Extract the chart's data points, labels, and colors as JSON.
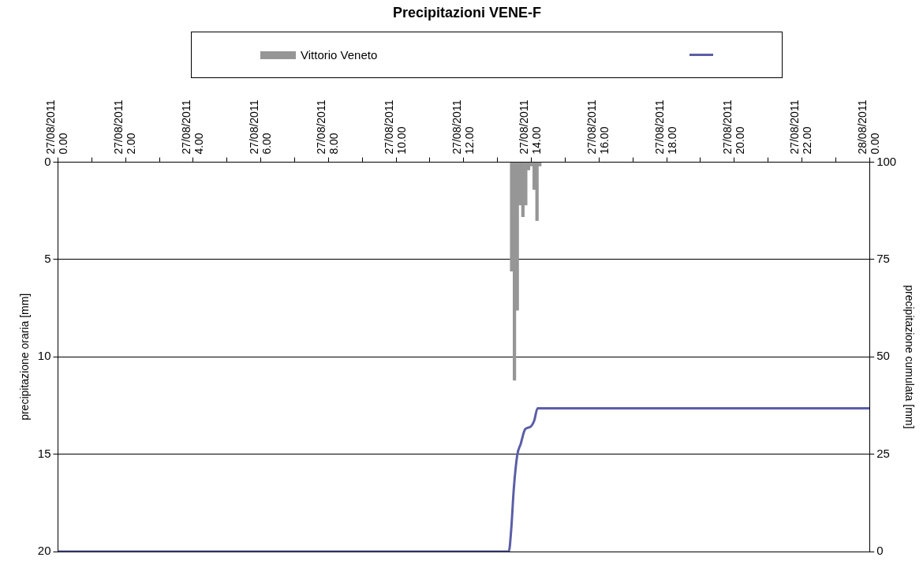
{
  "chart_data": {
    "type": "bar",
    "title": "Precipitazioni VENE-F",
    "ylabel": "precipitazione oraria [mm]",
    "y2label": "precipitazione cumulata [mm]",
    "x": [
      "2011-08-27T13:25",
      "2011-08-27T13:30",
      "2011-08-27T13:35",
      "2011-08-27T13:40",
      "2011-08-27T13:45",
      "2011-08-27T13:50",
      "2011-08-27T13:55",
      "2011-08-27T14:00",
      "2011-08-27T14:05",
      "2011-08-27T14:10",
      "2011-08-27T14:15"
    ],
    "series": [
      {
        "name": "Vittorio Veneto",
        "color": "#969696",
        "values": [
          5.6,
          11.2,
          7.6,
          2.2,
          2.8,
          2.2,
          0.4,
          0.2,
          1.4,
          3.0,
          0.2
        ]
      },
      {
        "type": "line",
        "axis": "y2",
        "color": "#5b5ea6",
        "x": [
          "2011-08-27T00:00",
          "2011-08-27T13:20",
          "2011-08-27T13:24",
          "2011-08-27T13:29",
          "2011-08-27T13:35",
          "2011-08-27T13:41",
          "2011-08-27T13:49",
          "2011-08-27T13:58",
          "2011-08-27T14:05",
          "2011-08-27T14:11",
          "2011-08-28T00:00"
        ],
        "values": [
          0,
          0,
          5.2,
          16.4,
          24.8,
          27.6,
          31.4,
          32.0,
          33.6,
          36.8,
          36.8
        ]
      }
    ],
    "xlim": [
      "2011-08-27T00:00",
      "2011-08-28T00:00"
    ],
    "xticks": [
      {
        "value": "2011-08-27T00:00",
        "label": "27/08/2011 0.00"
      },
      {
        "value": "2011-08-27T01:00",
        "label": null
      },
      {
        "value": "2011-08-27T02:00",
        "label": "27/08/2011 2.00"
      },
      {
        "value": "2011-08-27T03:00",
        "label": null
      },
      {
        "value": "2011-08-27T04:00",
        "label": "27/08/2011 4.00"
      },
      {
        "value": "2011-08-27T05:00",
        "label": null
      },
      {
        "value": "2011-08-27T06:00",
        "label": "27/08/2011 6.00"
      },
      {
        "value": "2011-08-27T07:00",
        "label": null
      },
      {
        "value": "2011-08-27T08:00",
        "label": "27/08/2011 8.00"
      },
      {
        "value": "2011-08-27T09:00",
        "label": null
      },
      {
        "value": "2011-08-27T10:00",
        "label": "27/08/2011 10.00"
      },
      {
        "value": "2011-08-27T11:00",
        "label": null
      },
      {
        "value": "2011-08-27T12:00",
        "label": "27/08/2011 12.00"
      },
      {
        "value": "2011-08-27T13:00",
        "label": null
      },
      {
        "value": "2011-08-27T14:00",
        "label": "27/08/2011 14.00"
      },
      {
        "value": "2011-08-27T15:00",
        "label": null
      },
      {
        "value": "2011-08-27T16:00",
        "label": "27/08/2011 16.00"
      },
      {
        "value": "2011-08-27T17:00",
        "label": null
      },
      {
        "value": "2011-08-27T18:00",
        "label": "27/08/2011 18.00"
      },
      {
        "value": "2011-08-27T19:00",
        "label": null
      },
      {
        "value": "2011-08-27T20:00",
        "label": "27/08/2011 20.00"
      },
      {
        "value": "2011-08-27T21:00",
        "label": null
      },
      {
        "value": "2011-08-27T22:00",
        "label": "27/08/2011 22.00"
      },
      {
        "value": "2011-08-27T23:00",
        "label": null
      },
      {
        "value": "2011-08-28T00:00",
        "label": "28/08/2011 0.00"
      }
    ],
    "ylim": [
      20,
      0
    ],
    "yticks": [
      0,
      5,
      10,
      15,
      20
    ],
    "y2lim": [
      0,
      100
    ],
    "y2ticks": [
      0,
      25,
      50,
      75,
      100
    ],
    "grid": "y",
    "legend": "top",
    "marker": "none"
  }
}
